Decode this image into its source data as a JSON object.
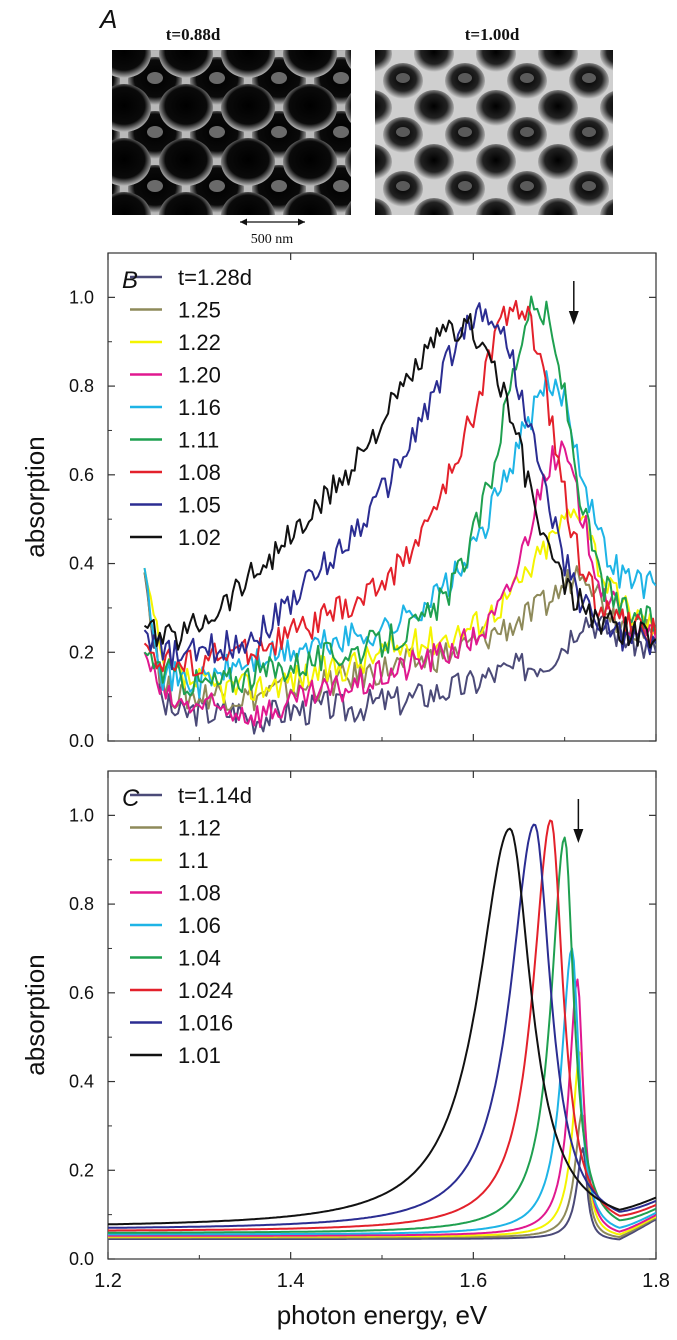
{
  "panel_a": {
    "label": "A",
    "images": [
      {
        "caption": "t=0.88d",
        "style": "dark"
      },
      {
        "caption": "t=1.00d",
        "style": "light"
      }
    ],
    "scale_bar_label": "500 nm"
  },
  "panels": {
    "B": {
      "label": "B"
    },
    "C": {
      "label": "C"
    }
  },
  "ylabel": "absorption",
  "xlabel": "photon energy, eV",
  "colors": [
    "#4b4a78",
    "#8e8a5a",
    "#f4f400",
    "#e0188f",
    "#1eb4e6",
    "#1fa050",
    "#e3212b",
    "#2b2d92",
    "#111111"
  ],
  "chart_data": [
    {
      "type": "line",
      "panel": "B",
      "xlim": [
        1.2,
        1.8
      ],
      "ylim": [
        0,
        1.1
      ],
      "xticks": [
        1.2,
        1.4,
        1.6,
        1.8
      ],
      "yticks": [
        0.0,
        0.2,
        0.4,
        0.6,
        0.8,
        1.0
      ],
      "ytick_labels": [
        "0.0",
        "0.2",
        "0.4",
        "0.6",
        "0.8",
        "1.0"
      ],
      "xtick_labels": [],
      "ylabel": "absorption",
      "legend_placement": "top-left",
      "arrow_x": 1.71,
      "series": [
        {
          "name": "t=1.28d",
          "x": [
            1.24,
            1.26,
            1.28,
            1.3,
            1.32,
            1.34,
            1.36,
            1.38,
            1.4,
            1.42,
            1.44,
            1.46,
            1.48,
            1.5,
            1.52,
            1.54,
            1.56,
            1.58,
            1.6,
            1.62,
            1.64,
            1.66,
            1.68,
            1.7,
            1.72,
            1.74,
            1.76,
            1.78,
            1.8
          ],
          "y": [
            0.38,
            0.08,
            0.06,
            0.07,
            0.06,
            0.07,
            0.05,
            0.06,
            0.07,
            0.07,
            0.08,
            0.07,
            0.08,
            0.09,
            0.09,
            0.1,
            0.11,
            0.12,
            0.13,
            0.15,
            0.16,
            0.17,
            0.18,
            0.22,
            0.28,
            0.26,
            0.24,
            0.22,
            0.2
          ]
        },
        {
          "name": "1.25",
          "x": [
            1.24,
            1.26,
            1.28,
            1.3,
            1.32,
            1.34,
            1.36,
            1.38,
            1.4,
            1.42,
            1.44,
            1.46,
            1.48,
            1.5,
            1.52,
            1.54,
            1.56,
            1.58,
            1.6,
            1.62,
            1.64,
            1.66,
            1.68,
            1.7,
            1.72,
            1.74,
            1.76,
            1.78,
            1.8
          ],
          "y": [
            0.38,
            0.12,
            0.1,
            0.1,
            0.11,
            0.1,
            0.1,
            0.11,
            0.12,
            0.12,
            0.13,
            0.14,
            0.15,
            0.16,
            0.17,
            0.18,
            0.19,
            0.2,
            0.22,
            0.24,
            0.26,
            0.28,
            0.31,
            0.35,
            0.4,
            0.32,
            0.27,
            0.25,
            0.23
          ]
        },
        {
          "name": "1.22",
          "x": [
            1.24,
            1.26,
            1.28,
            1.3,
            1.32,
            1.34,
            1.36,
            1.38,
            1.4,
            1.42,
            1.44,
            1.46,
            1.48,
            1.5,
            1.52,
            1.54,
            1.56,
            1.58,
            1.6,
            1.62,
            1.64,
            1.66,
            1.68,
            1.7,
            1.72,
            1.74,
            1.76,
            1.78,
            1.8
          ],
          "y": [
            0.39,
            0.16,
            0.14,
            0.13,
            0.12,
            0.12,
            0.12,
            0.13,
            0.14,
            0.15,
            0.16,
            0.17,
            0.18,
            0.2,
            0.21,
            0.22,
            0.23,
            0.24,
            0.26,
            0.29,
            0.33,
            0.38,
            0.44,
            0.5,
            0.53,
            0.38,
            0.31,
            0.28,
            0.26
          ]
        },
        {
          "name": "1.20",
          "x": [
            1.24,
            1.26,
            1.28,
            1.3,
            1.32,
            1.34,
            1.36,
            1.38,
            1.4,
            1.42,
            1.44,
            1.46,
            1.48,
            1.5,
            1.52,
            1.54,
            1.56,
            1.58,
            1.6,
            1.62,
            1.64,
            1.66,
            1.68,
            1.7,
            1.72,
            1.74,
            1.76,
            1.78,
            1.8
          ],
          "y": [
            0.2,
            0.1,
            0.08,
            0.08,
            0.07,
            0.07,
            0.06,
            0.07,
            0.08,
            0.1,
            0.11,
            0.12,
            0.13,
            0.15,
            0.16,
            0.18,
            0.19,
            0.21,
            0.23,
            0.27,
            0.34,
            0.47,
            0.62,
            0.65,
            0.5,
            0.35,
            0.28,
            0.25,
            0.23
          ]
        },
        {
          "name": "1.16",
          "x": [
            1.24,
            1.26,
            1.28,
            1.3,
            1.32,
            1.34,
            1.36,
            1.38,
            1.4,
            1.42,
            1.44,
            1.46,
            1.48,
            1.5,
            1.52,
            1.54,
            1.56,
            1.58,
            1.6,
            1.62,
            1.64,
            1.66,
            1.68,
            1.7,
            1.72,
            1.74,
            1.76,
            1.78,
            1.8
          ],
          "y": [
            0.39,
            0.15,
            0.14,
            0.13,
            0.15,
            0.17,
            0.18,
            0.19,
            0.2,
            0.21,
            0.22,
            0.23,
            0.24,
            0.25,
            0.27,
            0.3,
            0.33,
            0.37,
            0.43,
            0.52,
            0.62,
            0.72,
            0.8,
            0.78,
            0.6,
            0.45,
            0.38,
            0.36,
            0.35
          ]
        },
        {
          "name": "1.11",
          "x": [
            1.24,
            1.26,
            1.28,
            1.3,
            1.32,
            1.34,
            1.36,
            1.38,
            1.4,
            1.42,
            1.44,
            1.46,
            1.48,
            1.5,
            1.52,
            1.54,
            1.56,
            1.58,
            1.6,
            1.62,
            1.64,
            1.66,
            1.68,
            1.7,
            1.72,
            1.74,
            1.76,
            1.78,
            1.8
          ],
          "y": [
            0.2,
            0.16,
            0.14,
            0.13,
            0.13,
            0.14,
            0.15,
            0.16,
            0.17,
            0.18,
            0.19,
            0.2,
            0.21,
            0.22,
            0.24,
            0.26,
            0.3,
            0.36,
            0.46,
            0.6,
            0.8,
            0.97,
            0.96,
            0.78,
            0.52,
            0.36,
            0.3,
            0.28,
            0.26
          ]
        },
        {
          "name": "1.08",
          "x": [
            1.24,
            1.26,
            1.28,
            1.3,
            1.32,
            1.34,
            1.36,
            1.38,
            1.4,
            1.42,
            1.44,
            1.46,
            1.48,
            1.5,
            1.52,
            1.54,
            1.56,
            1.58,
            1.6,
            1.62,
            1.64,
            1.66,
            1.68,
            1.7,
            1.72,
            1.74,
            1.76,
            1.78,
            1.8
          ],
          "y": [
            0.22,
            0.18,
            0.17,
            0.18,
            0.19,
            0.2,
            0.21,
            0.22,
            0.24,
            0.26,
            0.28,
            0.3,
            0.32,
            0.36,
            0.4,
            0.46,
            0.53,
            0.62,
            0.74,
            0.88,
            0.99,
            0.96,
            0.78,
            0.55,
            0.38,
            0.3,
            0.27,
            0.25,
            0.24
          ]
        },
        {
          "name": "1.05",
          "x": [
            1.24,
            1.26,
            1.28,
            1.3,
            1.32,
            1.34,
            1.36,
            1.38,
            1.4,
            1.42,
            1.44,
            1.46,
            1.48,
            1.5,
            1.52,
            1.54,
            1.56,
            1.58,
            1.6,
            1.62,
            1.64,
            1.66,
            1.68,
            1.7,
            1.72,
            1.74,
            1.76,
            1.78,
            1.8
          ],
          "y": [
            0.25,
            0.2,
            0.19,
            0.2,
            0.21,
            0.22,
            0.24,
            0.27,
            0.32,
            0.36,
            0.4,
            0.45,
            0.5,
            0.56,
            0.63,
            0.71,
            0.8,
            0.89,
            0.96,
            0.96,
            0.88,
            0.72,
            0.55,
            0.4,
            0.31,
            0.26,
            0.24,
            0.23,
            0.22
          ]
        },
        {
          "name": "1.02",
          "x": [
            1.24,
            1.26,
            1.28,
            1.3,
            1.32,
            1.34,
            1.36,
            1.38,
            1.4,
            1.42,
            1.44,
            1.46,
            1.48,
            1.5,
            1.52,
            1.54,
            1.56,
            1.58,
            1.6,
            1.62,
            1.64,
            1.66,
            1.68,
            1.7,
            1.72,
            1.74,
            1.76,
            1.78,
            1.8
          ],
          "y": [
            0.26,
            0.23,
            0.24,
            0.27,
            0.3,
            0.34,
            0.38,
            0.42,
            0.46,
            0.5,
            0.55,
            0.6,
            0.66,
            0.72,
            0.78,
            0.85,
            0.9,
            0.93,
            0.93,
            0.86,
            0.74,
            0.58,
            0.44,
            0.35,
            0.3,
            0.27,
            0.25,
            0.24,
            0.23
          ]
        }
      ]
    },
    {
      "type": "line",
      "panel": "C",
      "xlim": [
        1.2,
        1.8
      ],
      "ylim": [
        0,
        1.1
      ],
      "xticks": [
        1.2,
        1.4,
        1.6,
        1.8
      ],
      "yticks": [
        0.0,
        0.2,
        0.4,
        0.6,
        0.8,
        1.0
      ],
      "ytick_labels": [
        "0.0",
        "0.2",
        "0.4",
        "0.6",
        "0.8",
        "1.0"
      ],
      "xtick_labels": [
        "1.2",
        "1.4",
        "1.6",
        "1.8"
      ],
      "ylabel": "absorption",
      "xlabel": "photon energy, eV",
      "legend_placement": "top-left",
      "arrow_x": 1.715,
      "series": [
        {
          "name": "t=1.14d",
          "x0": 1.72,
          "peak": 0.25,
          "width": 0.008,
          "base": 0.045
        },
        {
          "name": "1.12",
          "x0": 1.719,
          "peak": 0.33,
          "width": 0.009,
          "base": 0.048
        },
        {
          "name": "1.1",
          "x0": 1.717,
          "peak": 0.47,
          "width": 0.01,
          "base": 0.05
        },
        {
          "name": "1.08",
          "x0": 1.714,
          "peak": 0.63,
          "width": 0.011,
          "base": 0.052
        },
        {
          "name": "1.06",
          "x0": 1.708,
          "peak": 0.7,
          "width": 0.014,
          "base": 0.055
        },
        {
          "name": "1.04",
          "x0": 1.7,
          "peak": 0.95,
          "width": 0.018,
          "base": 0.058
        },
        {
          "name": "1.024",
          "x0": 1.685,
          "peak": 0.99,
          "width": 0.024,
          "base": 0.062
        },
        {
          "name": "1.016",
          "x0": 1.667,
          "peak": 0.98,
          "width": 0.032,
          "base": 0.066
        },
        {
          "name": "1.01",
          "x0": 1.64,
          "peak": 0.97,
          "width": 0.042,
          "base": 0.07
        }
      ]
    }
  ]
}
